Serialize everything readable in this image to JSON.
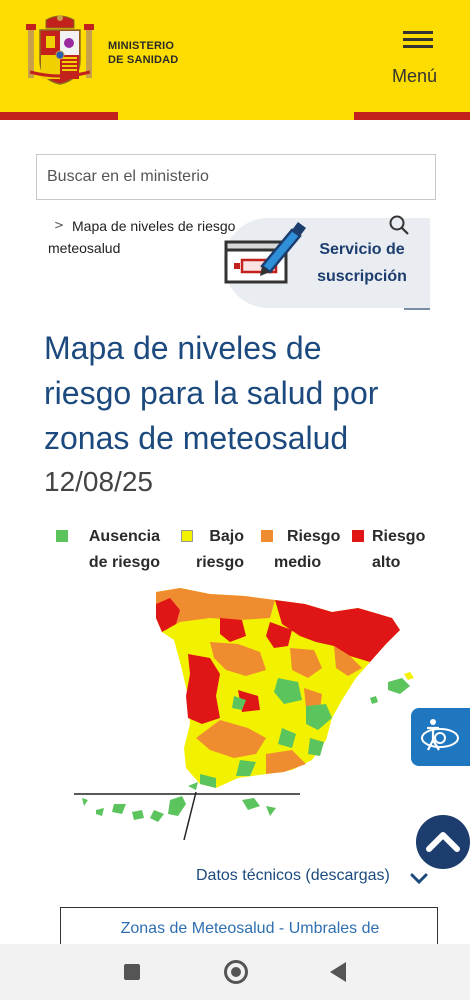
{
  "header": {
    "ministry_line1": "MINISTERIO",
    "ministry_line2": "DE SANIDAD",
    "menu_label": "Menú",
    "icons": [
      "coat-of-arms-logo",
      "hamburger-icon"
    ],
    "colors": {
      "yellow": "#fddc00",
      "red": "#c2211c"
    }
  },
  "search": {
    "placeholder": "Buscar en el ministerio"
  },
  "breadcrumb": {
    "separator": ">",
    "line1": "Mapa de niveles de riesgo",
    "line2": "meteosalud"
  },
  "subscription": {
    "line1": "Servicio de",
    "line2": "suscripción",
    "icon": "pen-signing-icon"
  },
  "main": {
    "title_line1": "Mapa de niveles de",
    "title_line2": "riesgo para la salud por",
    "title_line3": "zonas de meteosalud",
    "date": "12/08/25"
  },
  "legend": [
    {
      "line1": "Ausencia",
      "line2": "de riesgo",
      "color": "#5cc45c"
    },
    {
      "line1": "Bajo",
      "line2": "riesgo",
      "color": "#f2f200"
    },
    {
      "line1": "Riesgo",
      "line2": "medio",
      "color": "#f08c30"
    },
    {
      "line1": "Riesgo",
      "line2": "alto",
      "color": "#e01515"
    }
  ],
  "links": {
    "technical_data": "Datos técnicos (descargas)",
    "zones": "Zonas de Meteosalud - Umbrales de"
  },
  "floating": {
    "accessibility_icon": "accessibility-icon",
    "back_to_top_icon": "chevron-up-icon"
  },
  "navbar": {
    "icons": [
      "recents-icon",
      "home-icon",
      "back-icon"
    ]
  }
}
